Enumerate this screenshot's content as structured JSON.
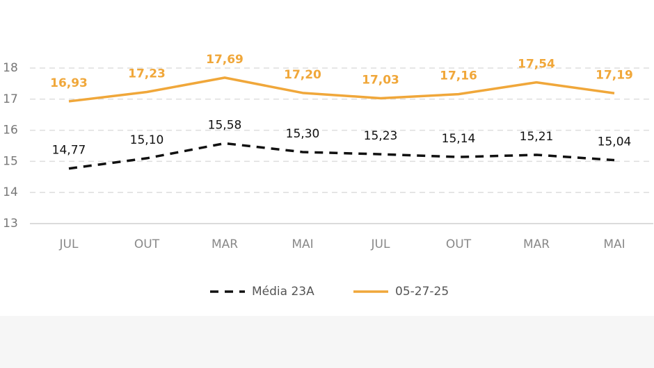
{
  "chart_data": {
    "type": "line",
    "categories": [
      "JUL",
      "OUT",
      "MAR",
      "MAI",
      "JUL",
      "OUT",
      "MAR",
      "MAI"
    ],
    "series": [
      {
        "name": "Média 23A",
        "color": "#111111",
        "dash": true,
        "values": [
          14.77,
          15.1,
          15.58,
          15.3,
          15.23,
          15.14,
          15.21,
          15.04
        ],
        "value_labels": [
          "14,77",
          "15,10",
          "15,58",
          "15,30",
          "15,23",
          "15,14",
          "15,21",
          "15,04"
        ]
      },
      {
        "name": "05-27-25",
        "color": "#f0a73a",
        "dash": false,
        "values": [
          16.93,
          17.23,
          17.69,
          17.2,
          17.03,
          17.16,
          17.54,
          17.19
        ],
        "value_labels": [
          "16,93",
          "17,23",
          "17,69",
          "17,20",
          "17,03",
          "17,16",
          "17,54",
          "17,19"
        ]
      }
    ],
    "ylim": [
      13,
      18
    ],
    "yticks": [
      13,
      14,
      15,
      16,
      17,
      18
    ],
    "grid": true,
    "legend": "bottom"
  }
}
